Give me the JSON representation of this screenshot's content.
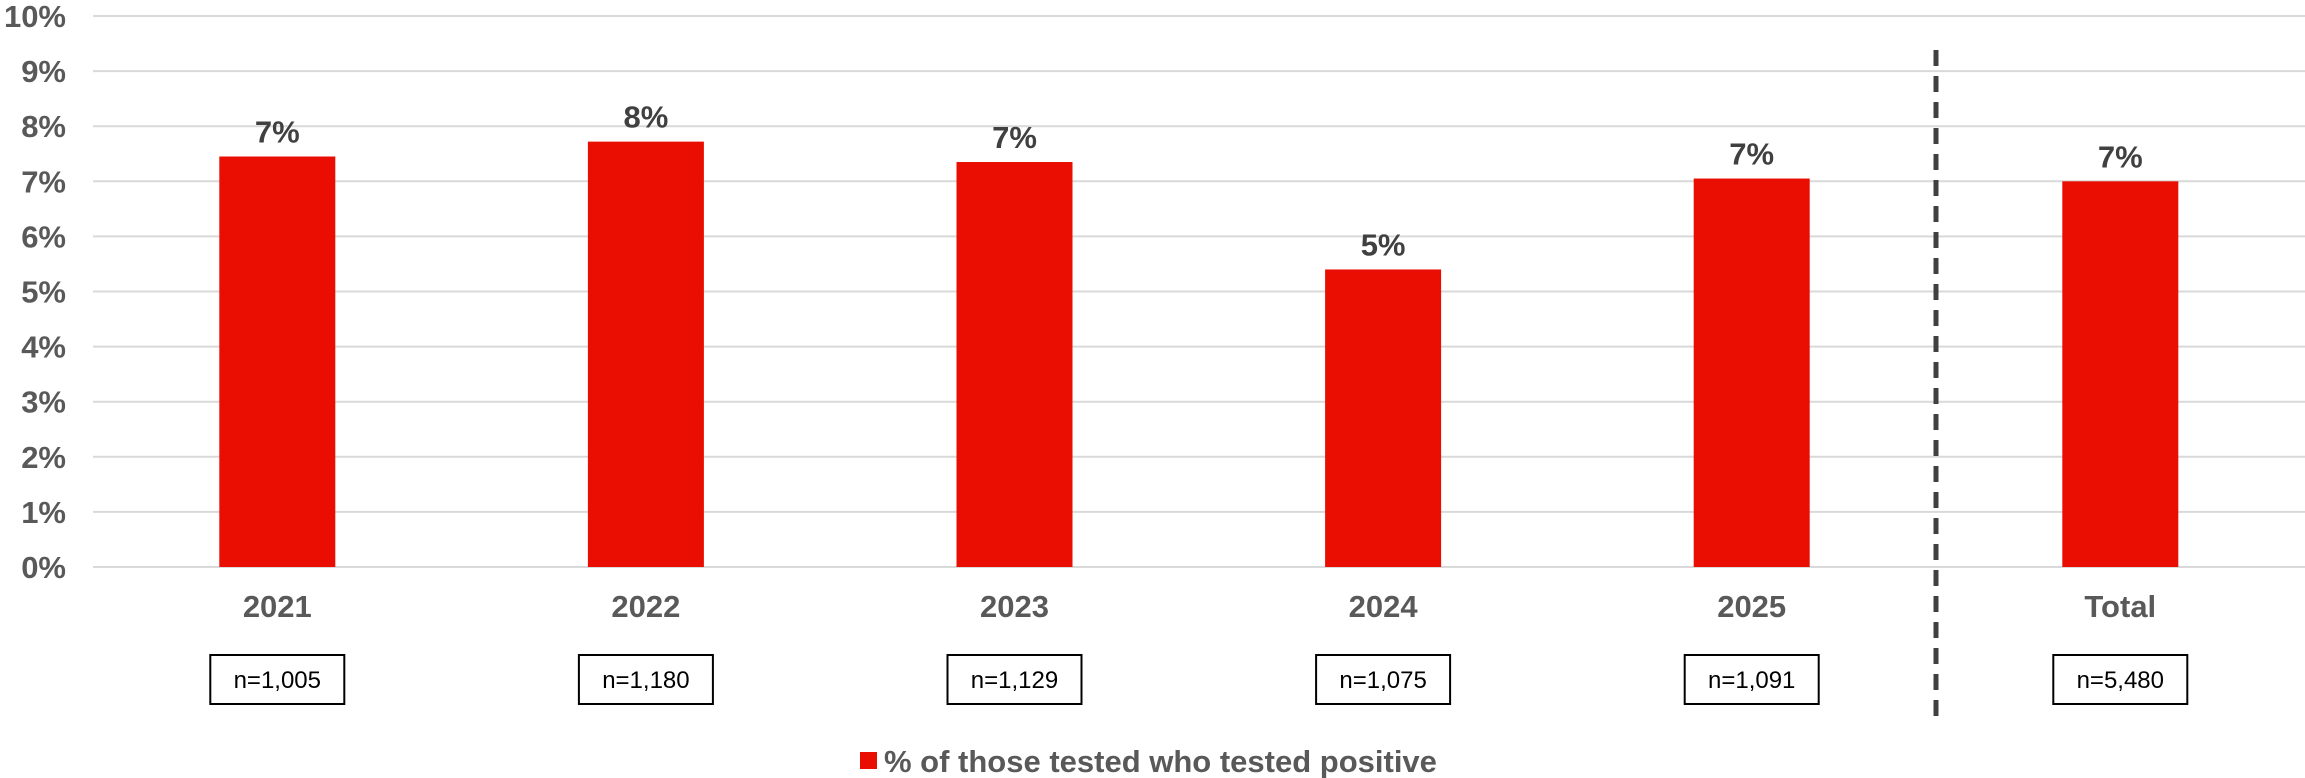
{
  "chart_data": {
    "type": "bar",
    "categories": [
      "2021",
      "2022",
      "2023",
      "2024",
      "2025",
      "Total"
    ],
    "values": [
      7.45,
      7.72,
      7.35,
      5.4,
      7.05,
      7.0
    ],
    "data_labels": [
      "7%",
      "8%",
      "7%",
      "5%",
      "7%",
      "7%"
    ],
    "sample_sizes": [
      "n=1,005",
      "n=1,180",
      "n=1,129",
      "n=1,075",
      "n=1,091",
      "n=5,480"
    ],
    "series": [
      {
        "name": "% of those tested who tested positive",
        "values": [
          7.45,
          7.72,
          7.35,
          5.4,
          7.05,
          7.0
        ]
      }
    ],
    "yticks": [
      "0%",
      "1%",
      "2%",
      "3%",
      "4%",
      "5%",
      "6%",
      "7%",
      "8%",
      "9%",
      "10%"
    ],
    "ylim": [
      0,
      10
    ],
    "grid": true,
    "legend_position": "bottom-center",
    "separator_before": "Total",
    "colors": {
      "bar": "#ea0e02",
      "grid": "#d9d9d9",
      "separator": "#404040",
      "axis_text": "#595959"
    }
  }
}
